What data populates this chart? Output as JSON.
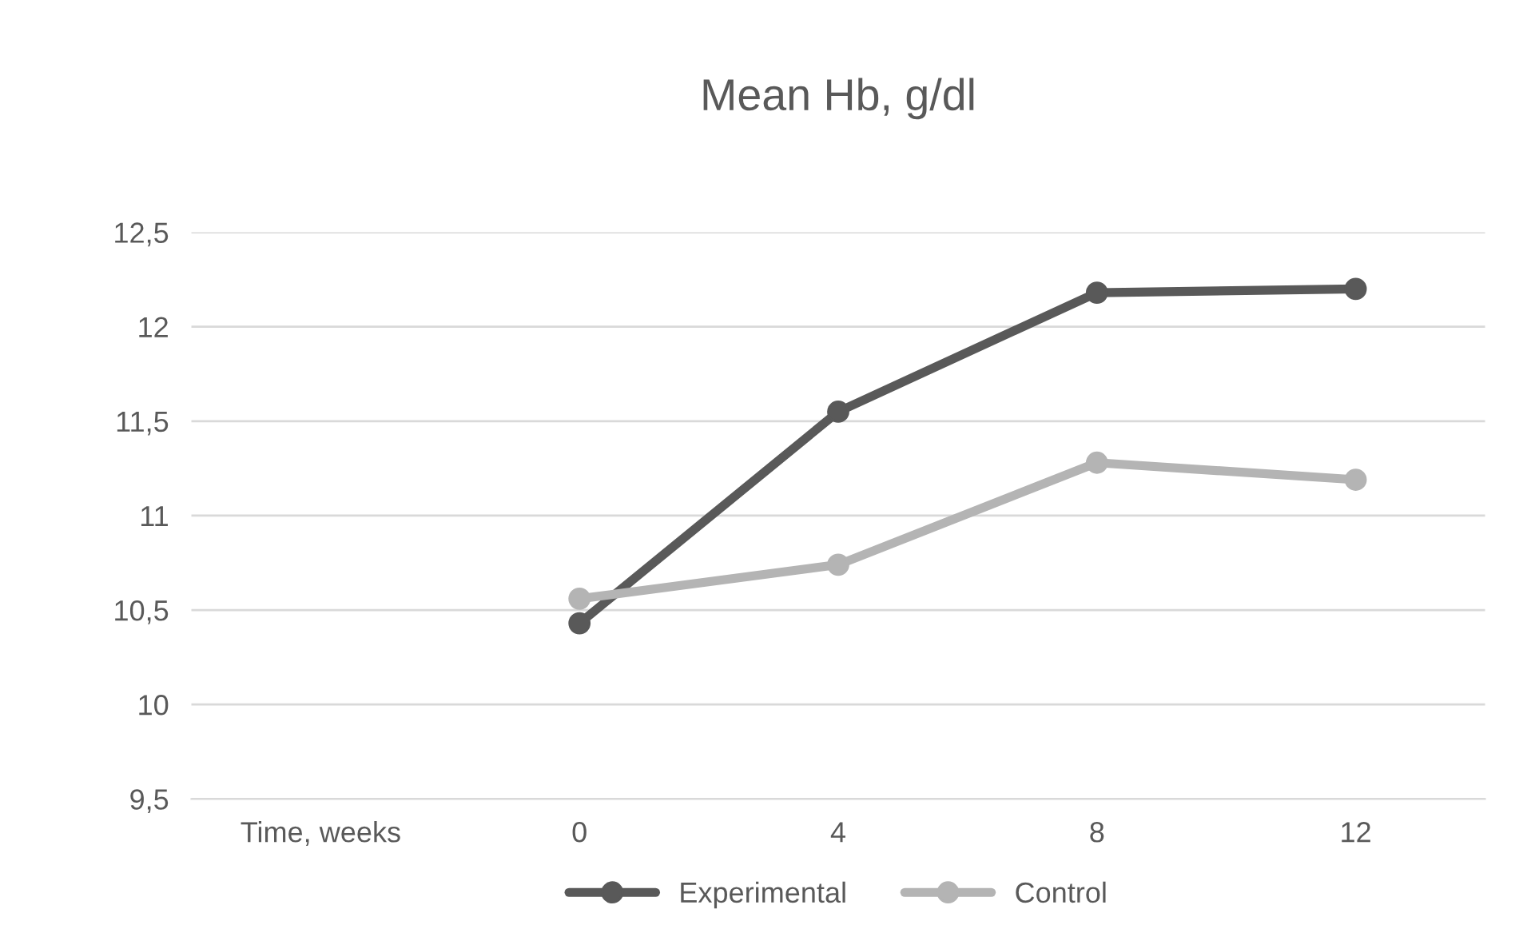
{
  "chart_data": {
    "type": "line",
    "title": "Mean Hb, g/dl",
    "categories": [
      "Time, weeks",
      "0",
      "4",
      "8",
      "12"
    ],
    "series": [
      {
        "name": "Experimental",
        "color": "#595959",
        "values": [
          null,
          10.43,
          11.55,
          12.18,
          12.2
        ]
      },
      {
        "name": "Control",
        "color": "#b4b4b4",
        "values": [
          null,
          10.56,
          10.74,
          11.28,
          11.19
        ]
      }
    ],
    "ylim": [
      9.5,
      12.5
    ],
    "yticks": [
      {
        "value": 9.5,
        "label": "9,5"
      },
      {
        "value": 10,
        "label": "10"
      },
      {
        "value": 10.5,
        "label": "10,5"
      },
      {
        "value": 11,
        "label": "11"
      },
      {
        "value": 11.5,
        "label": "11,5"
      },
      {
        "value": 12,
        "label": "12"
      },
      {
        "value": 12.5,
        "label": "12,5"
      }
    ],
    "grid": "y",
    "legend": "bottom",
    "marker": "circle",
    "line_style": "solid"
  }
}
